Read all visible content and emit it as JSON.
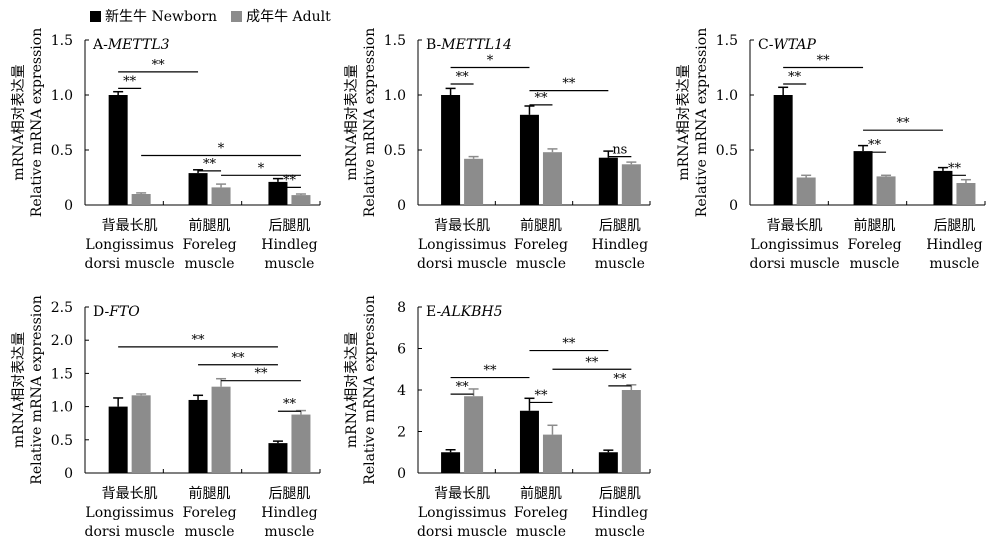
{
  "legend": {
    "newborn": "新生牛 Newborn",
    "adult": "成年牛 Adult",
    "newborn_color": "#000000",
    "adult_color": "#8c8c8c"
  },
  "ylabel_cn": "mRNA相对表达量",
  "ylabel_en": "Relative mRNA expression",
  "categories": [
    {
      "cn": "背最长肌",
      "en1": "Longissimus",
      "en2": "dorsi muscle"
    },
    {
      "cn": "前腿肌",
      "en1": "Foreleg",
      "en2": "muscle"
    },
    {
      "cn": "后腿肌",
      "en1": "Hindleg",
      "en2": "muscle"
    }
  ],
  "chart_data": [
    {
      "type": "bar",
      "title_prefix": "A-",
      "title_gene": "METTL3",
      "ylim": [
        0,
        1.5
      ],
      "yticks": [
        "0",
        "0.5",
        "1.0",
        "1.5"
      ],
      "series": [
        {
          "name": "新生牛 Newborn",
          "values": [
            1.0,
            0.29,
            0.21
          ],
          "errors": [
            0.03,
            0.03,
            0.03
          ]
        },
        {
          "name": "成年牛 Adult",
          "values": [
            0.1,
            0.16,
            0.09
          ],
          "errors": [
            0.01,
            0.03,
            0.01
          ]
        }
      ],
      "annotations": [
        {
          "label": "**",
          "from": [
            0,
            0
          ],
          "to": [
            0,
            1
          ],
          "y": 1.06
        },
        {
          "label": "**",
          "from": [
            0,
            0
          ],
          "to": [
            1,
            0
          ],
          "y": 1.21
        },
        {
          "label": "**",
          "from": [
            1,
            0
          ],
          "to": [
            1,
            1
          ],
          "y": 0.31
        },
        {
          "label": "*",
          "from": [
            0,
            1
          ],
          "to": [
            2,
            1
          ],
          "y": 0.45
        },
        {
          "label": "*",
          "from": [
            1,
            1
          ],
          "to": [
            2,
            1
          ],
          "y": 0.27
        },
        {
          "label": "**",
          "from": [
            2,
            0
          ],
          "to": [
            2,
            1
          ],
          "y": 0.16
        }
      ]
    },
    {
      "type": "bar",
      "title_prefix": "B-",
      "title_gene": "METTL14",
      "ylim": [
        0,
        1.5
      ],
      "yticks": [
        "0",
        "0.5",
        "1.0",
        "1.5"
      ],
      "series": [
        {
          "name": "新生牛 Newborn",
          "values": [
            1.0,
            0.82,
            0.43
          ],
          "errors": [
            0.06,
            0.08,
            0.06
          ]
        },
        {
          "name": "成年牛 Adult",
          "values": [
            0.42,
            0.48,
            0.37
          ],
          "errors": [
            0.02,
            0.03,
            0.02
          ]
        }
      ],
      "annotations": [
        {
          "label": "**",
          "from": [
            0,
            0
          ],
          "to": [
            0,
            1
          ],
          "y": 1.1
        },
        {
          "label": "*",
          "from": [
            0,
            0
          ],
          "to": [
            1,
            0
          ],
          "y": 1.25
        },
        {
          "label": "**",
          "from": [
            1,
            0
          ],
          "to": [
            1,
            1
          ],
          "y": 0.91
        },
        {
          "label": "**",
          "from": [
            1,
            0
          ],
          "to": [
            2,
            0
          ],
          "y": 1.04
        },
        {
          "label": "ns",
          "from": [
            2,
            0
          ],
          "to": [
            2,
            1
          ],
          "y": 0.44
        }
      ]
    },
    {
      "type": "bar",
      "title_prefix": "C-",
      "title_gene": "WTAP",
      "ylim": [
        0,
        1.5
      ],
      "yticks": [
        "0",
        "0.5",
        "1.0",
        "1.5"
      ],
      "series": [
        {
          "name": "新生牛 Newborn",
          "values": [
            1.0,
            0.49,
            0.31
          ],
          "errors": [
            0.07,
            0.05,
            0.03
          ]
        },
        {
          "name": "成年牛 Adult",
          "values": [
            0.25,
            0.26,
            0.2
          ],
          "errors": [
            0.02,
            0.01,
            0.03
          ]
        }
      ],
      "annotations": [
        {
          "label": "**",
          "from": [
            0,
            0
          ],
          "to": [
            0,
            1
          ],
          "y": 1.1
        },
        {
          "label": "**",
          "from": [
            0,
            0
          ],
          "to": [
            1,
            0
          ],
          "y": 1.25
        },
        {
          "label": "**",
          "from": [
            1,
            0
          ],
          "to": [
            1,
            1
          ],
          "y": 0.48
        },
        {
          "label": "**",
          "from": [
            1,
            0
          ],
          "to": [
            2,
            0
          ],
          "y": 0.68
        },
        {
          "label": "**",
          "from": [
            2,
            0
          ],
          "to": [
            2,
            1
          ],
          "y": 0.27
        }
      ]
    },
    {
      "type": "bar",
      "title_prefix": "D-",
      "title_gene": "FTO",
      "ylim": [
        0,
        2.5
      ],
      "yticks": [
        "0",
        "0.5",
        "1.0",
        "1.5",
        "2.0",
        "2.5"
      ],
      "series": [
        {
          "name": "新生牛 Newborn",
          "values": [
            1.0,
            1.1,
            0.45
          ],
          "errors": [
            0.13,
            0.07,
            0.03
          ]
        },
        {
          "name": "成年牛 Adult",
          "values": [
            1.17,
            1.3,
            0.88
          ],
          "errors": [
            0.02,
            0.12,
            0.06
          ]
        }
      ],
      "annotations": [
        {
          "label": "**",
          "from": [
            0,
            0
          ],
          "to": [
            2,
            0
          ],
          "y": 1.9
        },
        {
          "label": "**",
          "from": [
            1,
            0
          ],
          "to": [
            2,
            0
          ],
          "y": 1.63
        },
        {
          "label": "**",
          "from": [
            1,
            1
          ],
          "to": [
            2,
            1
          ],
          "y": 1.39
        },
        {
          "label": "**",
          "from": [
            2,
            0
          ],
          "to": [
            2,
            1
          ],
          "y": 0.93
        }
      ]
    },
    {
      "type": "bar",
      "title_prefix": "E-",
      "title_gene": "ALKBH5",
      "ylim": [
        0,
        8
      ],
      "yticks": [
        "0",
        "2",
        "4",
        "6",
        "8"
      ],
      "series": [
        {
          "name": "新生牛 Newborn",
          "values": [
            1.0,
            3.0,
            1.0
          ],
          "errors": [
            0.12,
            0.6,
            0.1
          ]
        },
        {
          "name": "成年牛 Adult",
          "values": [
            3.7,
            1.85,
            4.0
          ],
          "errors": [
            0.35,
            0.45,
            0.25
          ]
        }
      ],
      "annotations": [
        {
          "label": "**",
          "from": [
            0,
            0
          ],
          "to": [
            0,
            1
          ],
          "y": 3.8
        },
        {
          "label": "**",
          "from": [
            0,
            0
          ],
          "to": [
            1,
            0
          ],
          "y": 4.6
        },
        {
          "label": "**",
          "from": [
            1,
            0
          ],
          "to": [
            1,
            1
          ],
          "y": 3.4
        },
        {
          "label": "**",
          "from": [
            1,
            0
          ],
          "to": [
            2,
            0
          ],
          "y": 5.9
        },
        {
          "label": "**",
          "from": [
            1,
            1
          ],
          "to": [
            2,
            1
          ],
          "y": 5.0
        },
        {
          "label": "**",
          "from": [
            2,
            0
          ],
          "to": [
            2,
            1
          ],
          "y": 4.2
        }
      ]
    }
  ]
}
